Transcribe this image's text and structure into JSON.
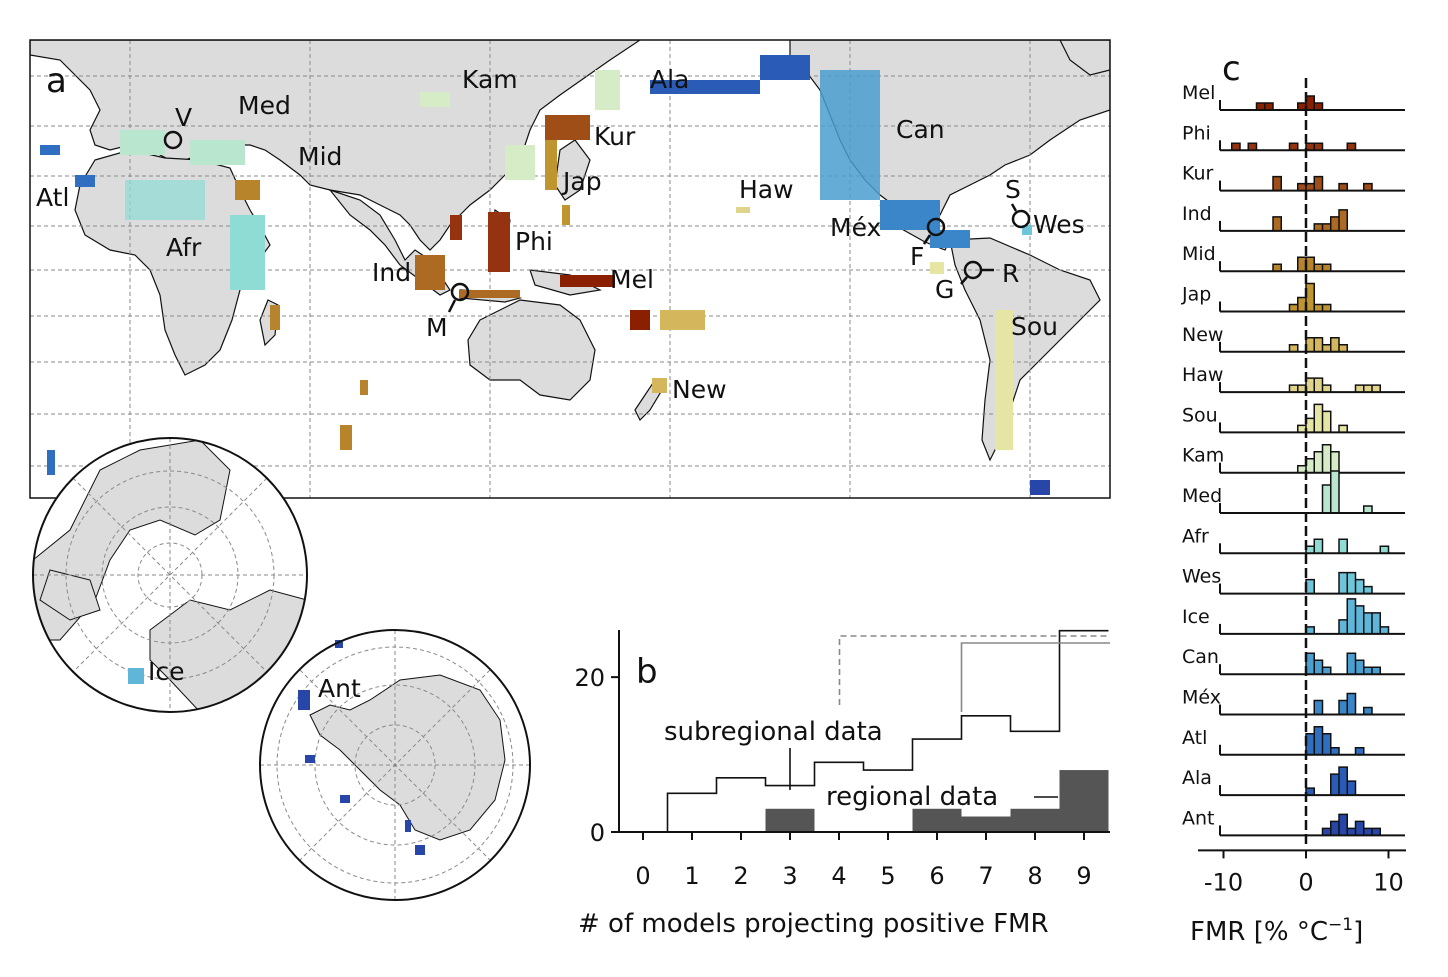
{
  "panels": {
    "a": "a",
    "b": "b",
    "c": "c"
  },
  "colors": {
    "land": "#dcdcdc",
    "grid": "#8a8a8a",
    "hist_outline": "#111111",
    "regional_fill": "#555555"
  },
  "map_labels": [
    {
      "text": "V"
    },
    {
      "text": "Med"
    },
    {
      "text": "Mid"
    },
    {
      "text": "Atl"
    },
    {
      "text": "Afr"
    },
    {
      "text": "Kam"
    },
    {
      "text": "Kur"
    },
    {
      "text": "Jap"
    },
    {
      "text": "Ind"
    },
    {
      "text": "Phi"
    },
    {
      "text": "M"
    },
    {
      "text": "Mel"
    },
    {
      "text": "New"
    },
    {
      "text": "Haw"
    },
    {
      "text": "Ala"
    },
    {
      "text": "Can"
    },
    {
      "text": "Méx"
    },
    {
      "text": "F"
    },
    {
      "text": "G"
    },
    {
      "text": "R"
    },
    {
      "text": "S"
    },
    {
      "text": "Wes"
    },
    {
      "text": "Sou"
    },
    {
      "text": "Ice"
    },
    {
      "text": "Ant"
    }
  ],
  "chart_data": [
    {
      "type": "bar",
      "panel": "b",
      "xlabel": "# of models projecting positive FMR",
      "categories": [
        "0",
        "1",
        "2",
        "3",
        "4",
        "5",
        "6",
        "7",
        "8",
        "9"
      ],
      "yticks": [
        "0",
        "20"
      ],
      "ylim": [
        0,
        27
      ],
      "series": [
        {
          "name": "subregional data",
          "values": [
            0,
            5,
            7,
            6,
            9,
            8,
            12,
            15,
            13,
            26
          ]
        },
        {
          "name": "regional data",
          "values": [
            0,
            0,
            0,
            3,
            0,
            0,
            3,
            2,
            3,
            8
          ]
        }
      ]
    },
    {
      "type": "bar",
      "panel": "c",
      "xlabel": "FMR [% °C",
      "xlabel_sup": "−1",
      "xlabel_end": "]",
      "xticks": [
        "-10",
        "0",
        "10"
      ],
      "xlim": [
        -12,
        12
      ],
      "bin_width": 1,
      "regions": [
        {
          "name": "Mel",
          "color": "#8b2000",
          "bins": [
            -6,
            -5,
            -1,
            0,
            1
          ],
          "counts": [
            1,
            1,
            1,
            2,
            1
          ]
        },
        {
          "name": "Phi",
          "color": "#953310",
          "bins": [
            -9,
            -7,
            -2,
            0,
            1,
            5
          ],
          "counts": [
            1,
            1,
            1,
            1,
            1,
            1
          ]
        },
        {
          "name": "Kur",
          "color": "#a04e18",
          "bins": [
            -4,
            -1,
            0,
            1,
            4,
            7
          ],
          "counts": [
            2,
            1,
            1,
            2,
            1,
            1
          ]
        },
        {
          "name": "Ind",
          "color": "#ad6a22",
          "bins": [
            -4,
            1,
            2,
            3,
            4
          ],
          "counts": [
            2,
            1,
            1,
            2,
            3
          ]
        },
        {
          "name": "Mid",
          "color": "#b8842b",
          "bins": [
            -4,
            -1,
            0,
            1,
            2
          ],
          "counts": [
            1,
            2,
            2,
            1,
            1
          ]
        },
        {
          "name": "Jap",
          "color": "#bf9530",
          "bins": [
            -2,
            -1,
            0,
            1,
            2
          ],
          "counts": [
            1,
            2,
            4,
            1,
            1
          ]
        },
        {
          "name": "New",
          "color": "#d4b65c",
          "bins": [
            -2,
            0,
            1,
            2,
            3,
            4
          ],
          "counts": [
            1,
            2,
            2,
            1,
            2,
            1
          ]
        },
        {
          "name": "Haw",
          "color": "#e0d48c",
          "bins": [
            -2,
            -1,
            0,
            1,
            2,
            6,
            7,
            8
          ],
          "counts": [
            1,
            1,
            2,
            2,
            1,
            1,
            1,
            1
          ]
        },
        {
          "name": "Sou",
          "color": "#e6e6a4",
          "bins": [
            -1,
            0,
            1,
            2,
            4
          ],
          "counts": [
            1,
            2,
            4,
            3,
            1
          ]
        },
        {
          "name": "Kam",
          "color": "#d5ecc6",
          "bins": [
            -1,
            0,
            1,
            2,
            3
          ],
          "counts": [
            1,
            2,
            3,
            4,
            3
          ]
        },
        {
          "name": "Med",
          "color": "#b8e6cf",
          "bins": [
            2,
            3,
            7
          ],
          "counts": [
            4,
            6,
            1
          ]
        },
        {
          "name": "Afr",
          "color": "#8fdcd4",
          "bins": [
            0,
            1,
            4,
            9
          ],
          "counts": [
            1,
            2,
            2,
            1
          ]
        },
        {
          "name": "Wes",
          "color": "#6fc6da",
          "bins": [
            0,
            4,
            5,
            6,
            7
          ],
          "counts": [
            2,
            3,
            3,
            2,
            1
          ]
        },
        {
          "name": "Ice",
          "color": "#5fb6d8",
          "bins": [
            0,
            4,
            5,
            6,
            7,
            8,
            9
          ],
          "counts": [
            1,
            2,
            5,
            4,
            3,
            3,
            1
          ]
        },
        {
          "name": "Can",
          "color": "#4a9fd0",
          "bins": [
            0,
            1,
            2,
            5,
            6,
            7,
            8
          ],
          "counts": [
            3,
            2,
            1,
            3,
            2,
            1,
            1
          ]
        },
        {
          "name": "Méx",
          "color": "#3a86c8",
          "bins": [
            1,
            4,
            5,
            7
          ],
          "counts": [
            2,
            2,
            3,
            1
          ]
        },
        {
          "name": "Atl",
          "color": "#2f6ec0",
          "bins": [
            0,
            1,
            2,
            3,
            6
          ],
          "counts": [
            3,
            4,
            3,
            1,
            1
          ]
        },
        {
          "name": "Ala",
          "color": "#2a5bb6",
          "bins": [
            0,
            3,
            4,
            5
          ],
          "counts": [
            1,
            3,
            4,
            2
          ]
        },
        {
          "name": "Ant",
          "color": "#2846a8",
          "bins": [
            2,
            3,
            4,
            5,
            6,
            7,
            8
          ],
          "counts": [
            1,
            2,
            3,
            1,
            2,
            1,
            1
          ]
        }
      ]
    }
  ]
}
